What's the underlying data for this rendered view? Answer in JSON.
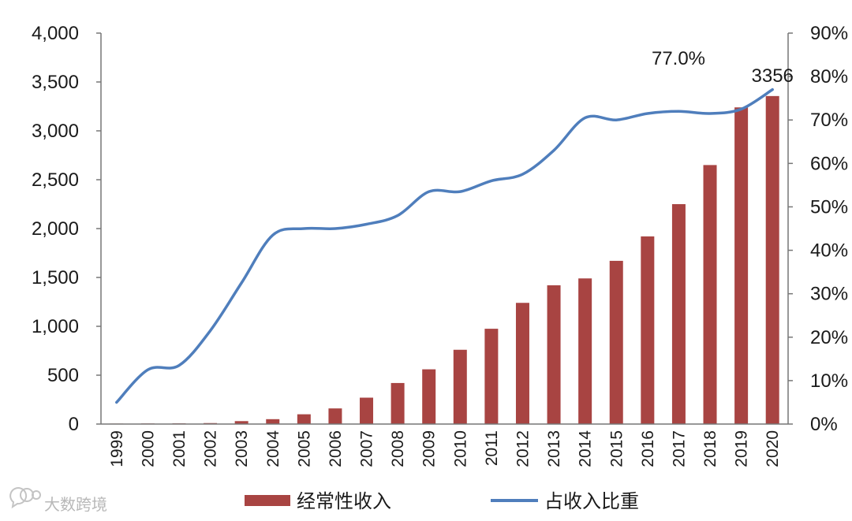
{
  "chart_data": {
    "type": "bar",
    "categories": [
      "1999",
      "2000",
      "2001",
      "2002",
      "2003",
      "2004",
      "2005",
      "2006",
      "2007",
      "2008",
      "2009",
      "2010",
      "2011",
      "2012",
      "2013",
      "2014",
      "2015",
      "2016",
      "2017",
      "2018",
      "2019",
      "2020"
    ],
    "series": [
      {
        "name": "经常性收入",
        "type": "bar",
        "axis": "left",
        "color": "#a84442",
        "values": [
          5,
          6,
          7,
          10,
          30,
          50,
          100,
          160,
          270,
          420,
          560,
          760,
          975,
          1240,
          1420,
          1490,
          1670,
          1920,
          2250,
          2650,
          3240,
          3356
        ]
      },
      {
        "name": "占收入比重",
        "type": "line",
        "axis": "right",
        "color": "#4f7ebc",
        "values": [
          5.0,
          12.5,
          13.5,
          21.5,
          32.5,
          43.5,
          45.0,
          45.0,
          46.0,
          48.0,
          53.5,
          53.5,
          56.0,
          57.5,
          63.0,
          70.5,
          70.0,
          71.5,
          72.0,
          71.5,
          72.5,
          77.0
        ]
      }
    ],
    "y_left": {
      "ylim": [
        0,
        4000
      ],
      "ticks": [
        "0",
        "500",
        "1,000",
        "1,500",
        "2,000",
        "2,500",
        "3,000",
        "3,500",
        "4,000"
      ]
    },
    "y_right": {
      "ylim": [
        0,
        90
      ],
      "ticks": [
        "0%",
        "10%",
        "20%",
        "30%",
        "40%",
        "50%",
        "60%",
        "70%",
        "80%",
        "90%"
      ]
    },
    "annotations": [
      {
        "text": "77.0%",
        "series": "占收入比重",
        "index": 21
      },
      {
        "text": "3356",
        "series": "经常性收入",
        "index": 21
      }
    ],
    "title": "",
    "xlabel": "",
    "ylabel": "",
    "grid": false,
    "legend_position": "bottom"
  },
  "watermark": {
    "text": "大数跨境",
    "logo_icon": "chat-bubble-logo-icon"
  }
}
